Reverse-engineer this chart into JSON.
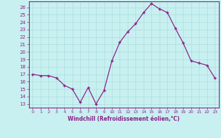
{
  "x": [
    0,
    1,
    2,
    3,
    4,
    5,
    6,
    7,
    8,
    9,
    10,
    11,
    12,
    13,
    14,
    15,
    16,
    17,
    18,
    19,
    20,
    21,
    22,
    23
  ],
  "y": [
    17.0,
    16.8,
    16.8,
    16.5,
    15.5,
    15.0,
    13.2,
    15.2,
    13.0,
    14.8,
    18.8,
    21.3,
    22.7,
    23.8,
    25.3,
    26.5,
    25.8,
    25.3,
    23.2,
    21.2,
    18.8,
    18.5,
    18.2,
    16.5
  ],
  "line_color": "#882288",
  "marker": "+",
  "bg_color": "#c8f0f0",
  "grid_color": "#aadddd",
  "xlabel": "Windchill (Refroidissement éolien,°C)",
  "ylabel_ticks": [
    13,
    14,
    15,
    16,
    17,
    18,
    19,
    20,
    21,
    22,
    23,
    24,
    25,
    26
  ],
  "ylim": [
    12.5,
    26.8
  ],
  "xlim": [
    -0.5,
    23.5
  ],
  "tick_color": "#882288",
  "label_color": "#882288",
  "axis_color": "#882288",
  "spine_color": "#882288"
}
